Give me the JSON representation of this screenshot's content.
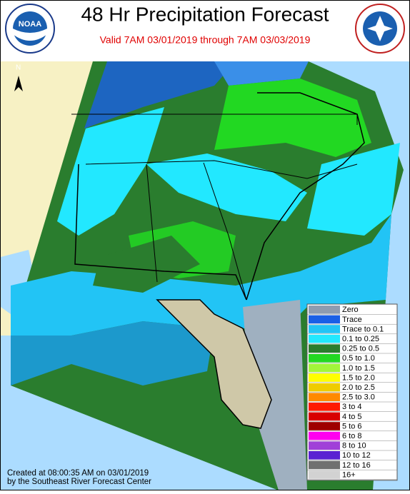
{
  "header": {
    "title": "48 Hr Precipitation Forecast",
    "subtitle": "Valid 7AM 03/01/2019 through 7AM 03/03/2019"
  },
  "logos": {
    "left": "NOAA"
  },
  "map": {
    "north_label": "N"
  },
  "legend": {
    "items": [
      {
        "label": "Zero",
        "color": "#8e9bb0"
      },
      {
        "label": "Trace",
        "color": "#1a5fe6"
      },
      {
        "label": "Trace to 0.1",
        "color": "#22c4f5"
      },
      {
        "label": "0.1 to 0.25",
        "color": "#22e8ff"
      },
      {
        "label": "0.25 to 0.5",
        "color": "#2a7d2e"
      },
      {
        "label": "0.5 to 1.0",
        "color": "#22d822"
      },
      {
        "label": "1.0 to 1.5",
        "color": "#a2f53a"
      },
      {
        "label": "1.5 to 2.0",
        "color": "#ffff00"
      },
      {
        "label": "2.0 to 2.5",
        "color": "#efcc00"
      },
      {
        "label": "2.5 to 3.0",
        "color": "#ff8a00"
      },
      {
        "label": "3 to 4",
        "color": "#ff1a00"
      },
      {
        "label": "4 to 5",
        "color": "#d80000"
      },
      {
        "label": "5 to 6",
        "color": "#9e0000"
      },
      {
        "label": "6 to 8",
        "color": "#ff00f0"
      },
      {
        "label": "8 to 10",
        "color": "#a040d8"
      },
      {
        "label": "10 to 12",
        "color": "#5a22d2"
      },
      {
        "label": "12 to 16",
        "color": "#707070"
      },
      {
        "label": "16+",
        "color": "#d2d2d2"
      }
    ]
  },
  "footer": {
    "lines": [
      "Created at 08:00:35 AM on 03/01/2019",
      "by the Southeast River Forecast Center"
    ]
  }
}
